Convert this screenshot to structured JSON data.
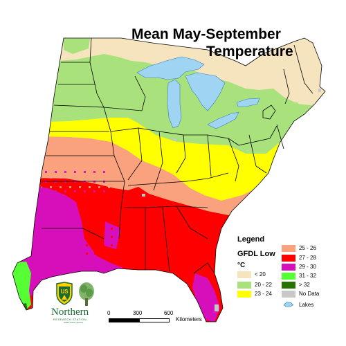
{
  "title": {
    "line1": "Mean May-September",
    "line2": "Temperature"
  },
  "legend": {
    "heading": "Legend",
    "model": "GFDL Low",
    "unit": "°C",
    "items": [
      {
        "label": "< 20",
        "color": "#f5e4bd"
      },
      {
        "label": "20 - 22",
        "color": "#a9e27c"
      },
      {
        "label": "23 - 24",
        "color": "#ffff00"
      },
      {
        "label": "25 - 26",
        "color": "#f9a27d"
      },
      {
        "label": "27 - 28",
        "color": "#ff0000"
      },
      {
        "label": "29 - 30",
        "color": "#d60fbb"
      },
      {
        "label": "31 - 32",
        "color": "#55ff33"
      },
      {
        "label": "> 32",
        "color": "#267300"
      },
      {
        "label": "No Data",
        "color": "#c8c8c8"
      },
      {
        "label": "Lakes",
        "color": "#9fd5f3"
      }
    ]
  },
  "scale_bar": {
    "ticks": [
      "0",
      "300",
      "600"
    ],
    "unit": "Kilometers"
  },
  "logo": {
    "shield_text": "US",
    "org_name": "Northern",
    "org_subtitle": "RESEARCH STATION",
    "org_tagline": "USDA Forest Service"
  },
  "colors": {
    "state_border": "#000000",
    "lake_outline": "#3a7fc4"
  }
}
